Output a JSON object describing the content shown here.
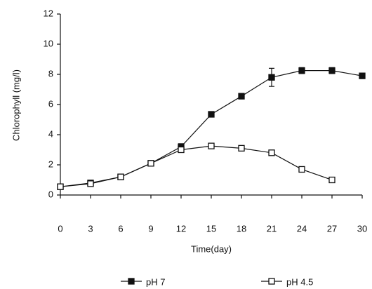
{
  "chart_data": {
    "type": "line",
    "x_label": "Time(day)",
    "y_label": "Chlorophyll (mg/l)",
    "x": [
      0,
      3,
      6,
      9,
      12,
      15,
      18,
      21,
      24,
      27,
      30
    ],
    "series": [
      {
        "name": "pH 7",
        "color": "#111111",
        "marker": "filled",
        "values": [
          0.55,
          0.8,
          1.2,
          2.1,
          3.2,
          5.35,
          6.55,
          7.8,
          8.25,
          8.25,
          7.9
        ],
        "errors": [
          0.1,
          0.1,
          0.1,
          0.15,
          0.2,
          0.15,
          0.15,
          0.6,
          0.2,
          0.2,
          0.15
        ]
      },
      {
        "name": "pH 4.5",
        "color": "#111111",
        "marker": "open",
        "values": [
          0.55,
          0.75,
          1.2,
          2.1,
          3.0,
          3.25,
          3.1,
          2.8,
          1.7,
          1.0,
          null
        ]
      }
    ],
    "xlim": [
      0,
      30
    ],
    "xticks": [
      0,
      3,
      6,
      9,
      12,
      15,
      18,
      21,
      24,
      27,
      30
    ],
    "ylim": [
      0,
      12
    ],
    "yticks": [
      0,
      2,
      4,
      6,
      8,
      10,
      12
    ],
    "legend": "bottom"
  }
}
